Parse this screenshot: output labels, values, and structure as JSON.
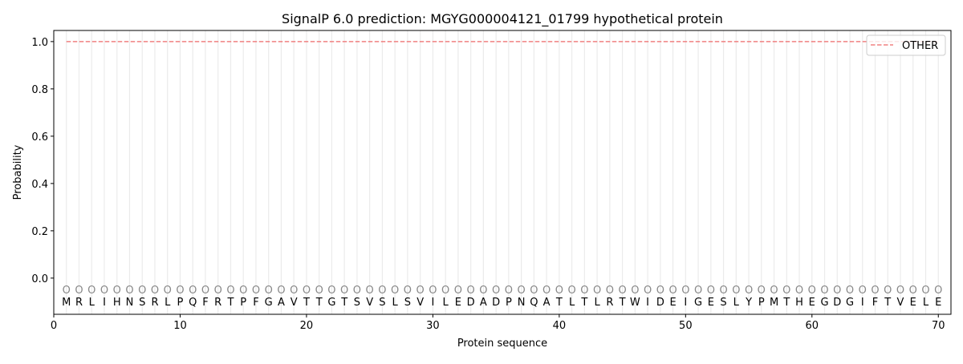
{
  "chart_data": {
    "type": "line",
    "title": "SignalP 6.0 prediction: MGYG000004121_01799 hypothetical protein",
    "xlabel": "Protein sequence",
    "ylabel": "Probability",
    "xlim": [
      0,
      71
    ],
    "ylim": [
      -0.153,
      1.047
    ],
    "xticks": [
      0,
      10,
      20,
      30,
      40,
      50,
      60,
      70
    ],
    "yticks": [
      0.0,
      0.2,
      0.4,
      0.6,
      0.8,
      1.0
    ],
    "ytick_labels": [
      "0.0",
      "0.2",
      "0.4",
      "0.6",
      "0.8",
      "1.0"
    ],
    "grid": "vertical lines at each residue",
    "legend_position": "top-right",
    "sequence": "MRLIHNSRLPQFRTPFGAVTTGTSVSLSVILEDADPNQATLTLRTWIDEIGESLYPMTHEGDGIFTVELE",
    "predicted_labels": "OOOOOOOOOOOOOOOOOOOOOOOOOOOOOOOOOOOOOOOOOOOOOOOOOOOOOOOOOOOOOOOOOOOOOO",
    "series": [
      {
        "name": "OTHER",
        "color": "#f08080",
        "style": "dashed",
        "x_start": 1,
        "x_end": 70,
        "value": 1.0
      }
    ]
  }
}
